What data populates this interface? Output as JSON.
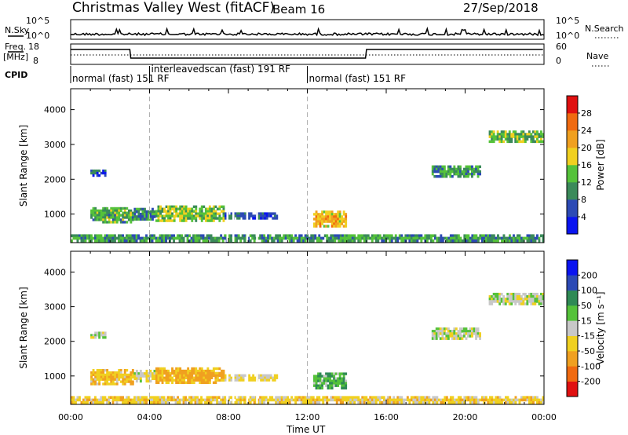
{
  "header": {
    "station": "Christmas Valley West (fitACF)",
    "beam": "Beam 16",
    "date": "27/Sep/2018"
  },
  "strip_labels": {
    "nsky": "N.Sky",
    "nsky_ticks": [
      "10^5",
      "10^0"
    ],
    "nsearch": "N.Search",
    "nsearch_ticks": [
      "10^5",
      "10^0"
    ],
    "freq": "Freq.",
    "freq_unit": "[MHz]",
    "freq_ticks": [
      "18",
      "8"
    ],
    "nave": "Nave",
    "nave_ticks": [
      "60",
      "0"
    ],
    "cpid": "CPID"
  },
  "cpid_segments": [
    {
      "label": "normal (fast) 151 RF",
      "start_h": 0,
      "end_h": 4
    },
    {
      "label": "interleavedscan (fast) 191 RF",
      "start_h": 4,
      "end_h": 12
    },
    {
      "label": "normal (fast) 151 RF",
      "start_h": 12,
      "end_h": 24
    }
  ],
  "colors": {
    "power_scale": [
      "#0a14f0",
      "#2c4ab5",
      "#3b8a5a",
      "#55c23a",
      "#f0d020",
      "#f0a020",
      "#f06a10",
      "#e01010"
    ],
    "velocity_scale": [
      "#e01010",
      "#f06a10",
      "#f0a020",
      "#f0d020",
      "#c8c8c8",
      "#55c23a",
      "#2f8a55",
      "#2c4ab5",
      "#0a14f0"
    ],
    "ground": "#c8c8c8",
    "dash": "#b0b0b0"
  },
  "chart_data": [
    {
      "type": "heatmap",
      "title": "Power",
      "xlabel": "Time UT",
      "ylabel": "Slant Range [km]",
      "xlim_hours": [
        0,
        24
      ],
      "ylim": [
        180,
        4600
      ],
      "x_ticks": [
        "00:00",
        "04:00",
        "08:00",
        "12:00",
        "16:00",
        "20:00",
        "00:00"
      ],
      "y_ticks": [
        1000,
        2000,
        3000,
        4000
      ],
      "colorbar": {
        "label": "Power [dB]",
        "min": 0,
        "max": 32,
        "ticks": [
          4,
          8,
          12,
          16,
          20,
          24,
          28
        ]
      },
      "echo_regions": [
        {
          "t0": 0.0,
          "t1": 24.0,
          "r0": 200,
          "r1": 420,
          "value": 11
        },
        {
          "t0": 1.0,
          "t1": 3.2,
          "r0": 740,
          "r1": 1200,
          "value": 12
        },
        {
          "t0": 3.2,
          "t1": 4.3,
          "r0": 820,
          "r1": 1180,
          "value": 9
        },
        {
          "t0": 4.3,
          "t1": 7.8,
          "r0": 780,
          "r1": 1250,
          "value": 14
        },
        {
          "t0": 7.8,
          "t1": 10.5,
          "r0": 850,
          "r1": 1050,
          "value": 6
        },
        {
          "t0": 12.3,
          "t1": 14.0,
          "r0": 620,
          "r1": 1100,
          "value": 20
        },
        {
          "t0": 1.0,
          "t1": 1.8,
          "r0": 2080,
          "r1": 2280,
          "value": 6
        },
        {
          "t0": 18.3,
          "t1": 20.8,
          "r0": 2050,
          "r1": 2400,
          "value": 11
        },
        {
          "t0": 21.2,
          "t1": 24.0,
          "r0": 3050,
          "r1": 3400,
          "value": 13
        }
      ]
    },
    {
      "type": "heatmap",
      "title": "Velocity",
      "xlabel": "Time UT",
      "ylabel": "Slant Range [km]",
      "xlim_hours": [
        0,
        24
      ],
      "ylim": [
        180,
        4600
      ],
      "x_ticks": [
        "00:00",
        "04:00",
        "08:00",
        "12:00",
        "16:00",
        "20:00",
        "00:00"
      ],
      "y_ticks": [
        1000,
        2000,
        3000,
        4000
      ],
      "colorbar": {
        "label": "Velocity [m s⁻¹]",
        "ticks": [
          "200",
          "100",
          "50",
          "15",
          "-15",
          "-50",
          "-100",
          "-200"
        ]
      },
      "echo_regions": [
        {
          "t0": 0.0,
          "t1": 24.0,
          "r0": 200,
          "r1": 420,
          "value": -30
        },
        {
          "t0": 1.0,
          "t1": 3.2,
          "r0": 740,
          "r1": 1200,
          "value": -40
        },
        {
          "t0": 3.2,
          "t1": 4.3,
          "r0": 820,
          "r1": 1180,
          "value": -5
        },
        {
          "t0": 4.3,
          "t1": 7.8,
          "r0": 780,
          "r1": 1250,
          "value": -60
        },
        {
          "t0": 7.8,
          "t1": 10.5,
          "r0": 850,
          "r1": 1050,
          "value": -20
        },
        {
          "t0": 12.3,
          "t1": 14.0,
          "r0": 620,
          "r1": 1100,
          "value": 40
        },
        {
          "t0": 1.0,
          "t1": 1.8,
          "r0": 2080,
          "r1": 2280,
          "value": 0
        },
        {
          "t0": 18.3,
          "t1": 20.8,
          "r0": 2050,
          "r1": 2400,
          "value": 0
        },
        {
          "t0": 21.2,
          "t1": 24.0,
          "r0": 3050,
          "r1": 3400,
          "value": 5
        }
      ]
    }
  ]
}
